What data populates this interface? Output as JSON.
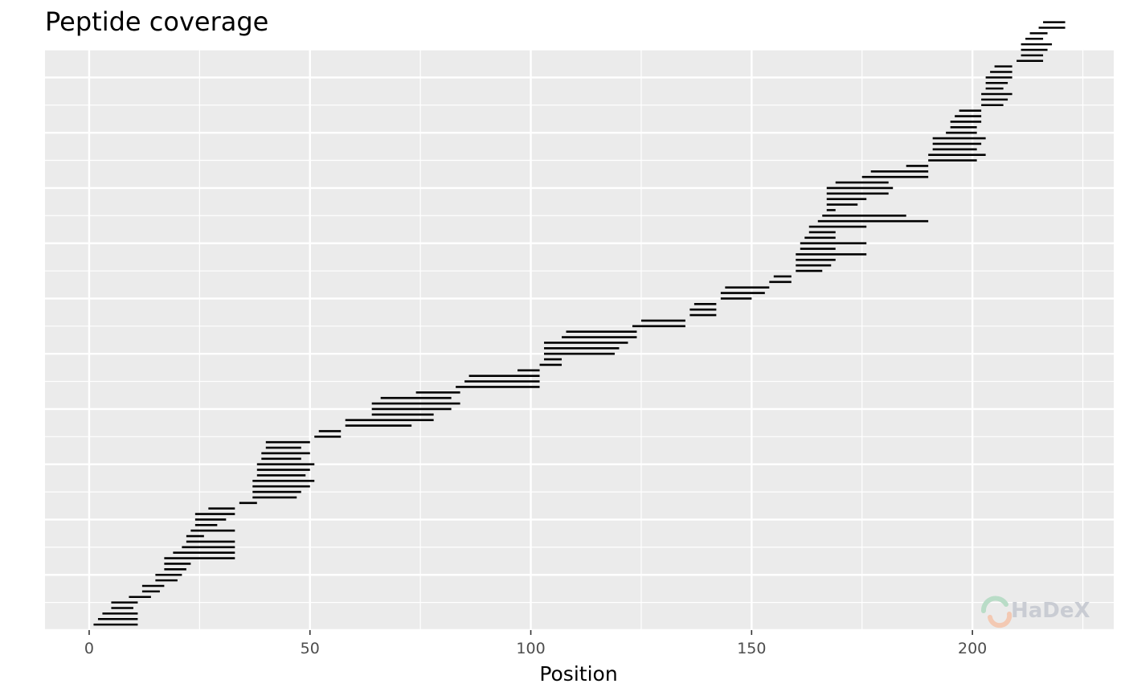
{
  "chart_data": {
    "type": "peptide-coverage",
    "title": "Peptide coverage",
    "xlabel": "Position",
    "ylabel": "",
    "xlim": [
      -10,
      232
    ],
    "ylim": [
      0,
      105
    ],
    "x_ticks": [
      0,
      50,
      100,
      150,
      200
    ],
    "x_tick_labels": [
      "0",
      "50",
      "100",
      "150",
      "200"
    ],
    "grid": true,
    "panel_background": "#ebebeb",
    "grid_color": "#ffffff",
    "segment_color": "#000000",
    "peptides": [
      [
        1,
        11
      ],
      [
        2,
        11
      ],
      [
        3,
        11
      ],
      [
        5,
        10
      ],
      [
        5,
        11
      ],
      [
        9,
        14
      ],
      [
        12,
        16
      ],
      [
        12,
        17
      ],
      [
        15,
        20
      ],
      [
        15,
        21
      ],
      [
        17,
        22
      ],
      [
        17,
        23
      ],
      [
        17,
        33
      ],
      [
        19,
        33
      ],
      [
        21,
        33
      ],
      [
        22,
        33
      ],
      [
        22,
        26
      ],
      [
        23,
        33
      ],
      [
        24,
        29
      ],
      [
        24,
        31
      ],
      [
        24,
        33
      ],
      [
        27,
        33
      ],
      [
        34,
        38
      ],
      [
        37,
        47
      ],
      [
        37,
        48
      ],
      [
        37,
        50
      ],
      [
        37,
        51
      ],
      [
        38,
        49
      ],
      [
        38,
        50
      ],
      [
        38,
        51
      ],
      [
        39,
        48
      ],
      [
        39,
        50
      ],
      [
        40,
        48
      ],
      [
        40,
        50
      ],
      [
        51,
        57
      ],
      [
        52,
        57
      ],
      [
        58,
        73
      ],
      [
        58,
        78
      ],
      [
        64,
        78
      ],
      [
        64,
        82
      ],
      [
        64,
        84
      ],
      [
        66,
        82
      ],
      [
        74,
        84
      ],
      [
        83,
        102
      ],
      [
        85,
        102
      ],
      [
        86,
        102
      ],
      [
        97,
        102
      ],
      [
        102,
        107
      ],
      [
        103,
        107
      ],
      [
        103,
        119
      ],
      [
        103,
        120
      ],
      [
        103,
        122
      ],
      [
        107,
        124
      ],
      [
        108,
        124
      ],
      [
        123,
        135
      ],
      [
        125,
        135
      ],
      [
        136,
        142
      ],
      [
        136,
        142
      ],
      [
        137,
        142
      ],
      [
        143,
        150
      ],
      [
        143,
        153
      ],
      [
        144,
        154
      ],
      [
        154,
        159
      ],
      [
        155,
        159
      ],
      [
        160,
        166
      ],
      [
        160,
        168
      ],
      [
        160,
        169
      ],
      [
        160,
        176
      ],
      [
        161,
        169
      ],
      [
        161,
        176
      ],
      [
        162,
        169
      ],
      [
        163,
        169
      ],
      [
        163,
        176
      ],
      [
        165,
        190
      ],
      [
        166,
        185
      ],
      [
        167,
        169
      ],
      [
        167,
        174
      ],
      [
        167,
        176
      ],
      [
        167,
        181
      ],
      [
        167,
        182
      ],
      [
        169,
        181
      ],
      [
        175,
        190
      ],
      [
        177,
        190
      ],
      [
        185,
        190
      ],
      [
        190,
        201
      ],
      [
        190,
        203
      ],
      [
        191,
        201
      ],
      [
        191,
        202
      ],
      [
        191,
        203
      ],
      [
        194,
        201
      ],
      [
        195,
        201
      ],
      [
        195,
        202
      ],
      [
        196,
        202
      ],
      [
        197,
        202
      ],
      [
        202,
        207
      ],
      [
        202,
        208
      ],
      [
        202,
        209
      ],
      [
        203,
        207
      ],
      [
        203,
        208
      ],
      [
        203,
        209
      ],
      [
        204,
        209
      ],
      [
        205,
        209
      ],
      [
        210,
        216
      ],
      [
        211,
        216
      ],
      [
        211,
        217
      ],
      [
        211,
        218
      ],
      [
        212,
        216
      ],
      [
        213,
        217
      ],
      [
        215,
        221
      ],
      [
        216,
        221
      ]
    ]
  },
  "logo": {
    "name": "hadex-logo",
    "text": "HaDeX"
  }
}
